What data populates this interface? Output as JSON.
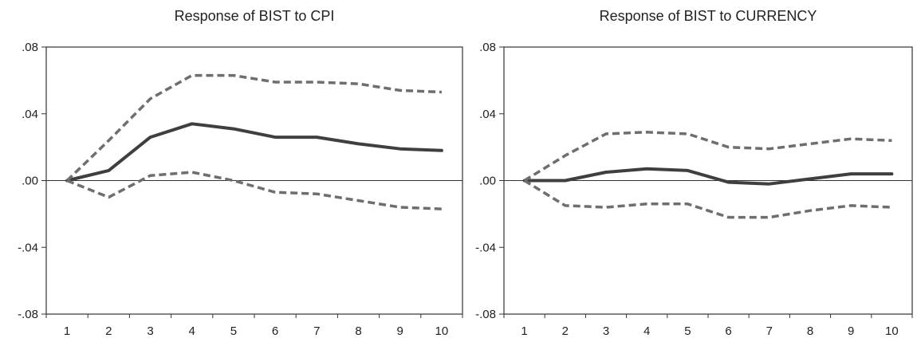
{
  "chart_data": [
    {
      "type": "line",
      "title": "Response of BIST to CPI",
      "xlabel": "",
      "ylabel": "",
      "x": [
        1,
        2,
        3,
        4,
        5,
        6,
        7,
        8,
        9,
        10
      ],
      "ylim": [
        -0.08,
        0.08
      ],
      "yticks": [
        0.08,
        0.04,
        0.0,
        -0.04,
        -0.08
      ],
      "ytick_labels": [
        ".08",
        ".04",
        ".00",
        "-.04",
        "-.08"
      ],
      "zero_line": true,
      "series": [
        {
          "style": "solid",
          "values": [
            0.0,
            0.006,
            0.026,
            0.034,
            0.031,
            0.026,
            0.026,
            0.022,
            0.019,
            0.018
          ]
        },
        {
          "style": "dashed",
          "values": [
            0.0,
            0.024,
            0.049,
            0.063,
            0.063,
            0.059,
            0.059,
            0.058,
            0.054,
            0.053
          ]
        },
        {
          "style": "dashed",
          "values": [
            0.0,
            -0.01,
            0.003,
            0.005,
            0.0,
            -0.007,
            -0.008,
            -0.012,
            -0.016,
            -0.017
          ]
        }
      ]
    },
    {
      "type": "line",
      "title": "Response of BIST to CURRENCY",
      "xlabel": "",
      "ylabel": "",
      "x": [
        1,
        2,
        3,
        4,
        5,
        6,
        7,
        8,
        9,
        10
      ],
      "ylim": [
        -0.08,
        0.08
      ],
      "yticks": [
        0.08,
        0.04,
        0.0,
        -0.04,
        -0.08
      ],
      "ytick_labels": [
        ".08",
        ".04",
        ".00",
        "-.04",
        "-.08"
      ],
      "zero_line": true,
      "series": [
        {
          "style": "solid",
          "values": [
            0.0,
            0.0,
            0.005,
            0.007,
            0.006,
            -0.001,
            -0.002,
            0.001,
            0.004,
            0.004
          ]
        },
        {
          "style": "dashed",
          "values": [
            0.0,
            0.015,
            0.028,
            0.029,
            0.028,
            0.02,
            0.019,
            0.022,
            0.025,
            0.024
          ]
        },
        {
          "style": "dashed",
          "values": [
            0.0,
            -0.015,
            -0.016,
            -0.014,
            -0.014,
            -0.022,
            -0.022,
            -0.018,
            -0.015,
            -0.016
          ]
        }
      ]
    }
  ]
}
